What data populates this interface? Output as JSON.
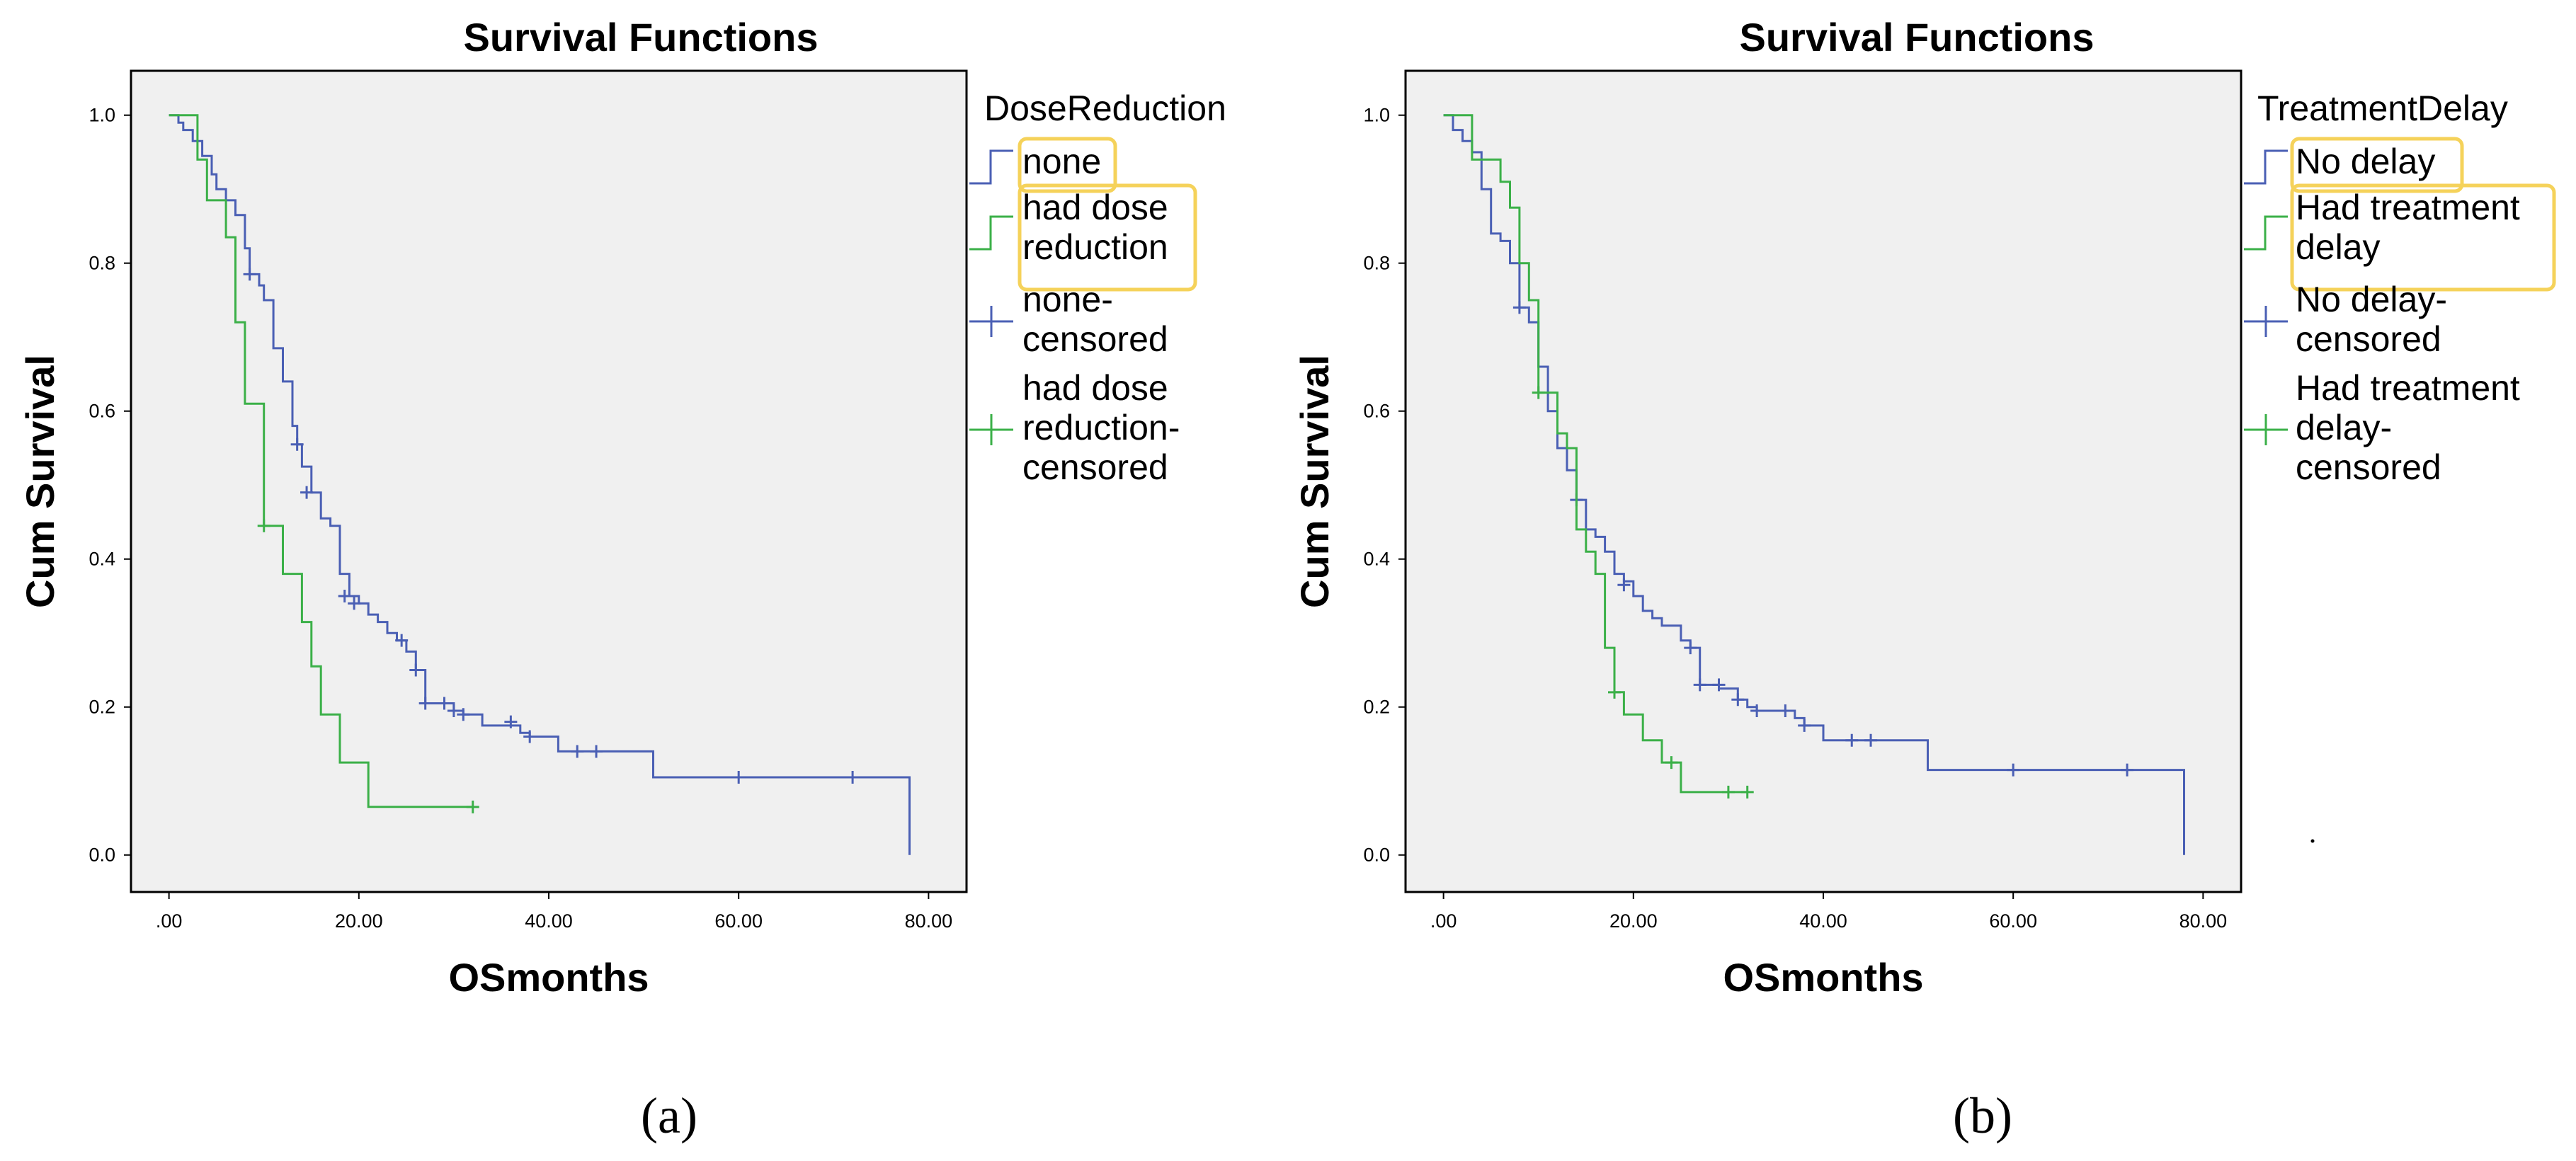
{
  "colors": {
    "none": "#4a5fb4",
    "reduced": "#3bb048",
    "highlight": "#f5d25a"
  },
  "chart_data": [
    {
      "type": "line",
      "subtype": "kaplan-meier step",
      "panel_label": "(a)",
      "title": "Survival Functions",
      "xlabel": "OSmonths",
      "ylabel": "Cum Survival",
      "xlim": [
        -4,
        84
      ],
      "ylim": [
        -0.05,
        1.06
      ],
      "xticks": [
        0,
        20,
        40,
        60,
        80
      ],
      "xtick_labels": [
        ".00",
        "20.00",
        "40.00",
        "60.00",
        "80.00"
      ],
      "yticks": [
        0.0,
        0.2,
        0.4,
        0.6,
        0.8,
        1.0
      ],
      "ytick_labels": [
        "0.0",
        "0.2",
        "0.4",
        "0.6",
        "0.8",
        "1.0"
      ],
      "legend_title": "DoseReduction",
      "legend": [
        {
          "label": "none",
          "lines": [
            "none"
          ],
          "series": 0,
          "kind": "line"
        },
        {
          "label": "had dose reduction",
          "lines": [
            "had dose",
            "reduction"
          ],
          "series": 1,
          "kind": "line"
        },
        {
          "label": "none-censored",
          "lines": [
            "none-",
            "censored"
          ],
          "series": 0,
          "kind": "censor"
        },
        {
          "label": "had dose reduction-censored",
          "lines": [
            "had dose",
            "reduction-",
            "censored"
          ],
          "series": 1,
          "kind": "censor"
        }
      ],
      "series": [
        {
          "name": "none",
          "color_key": "none",
          "steps": [
            [
              0,
              1.0
            ],
            [
              1,
              0.99
            ],
            [
              1.5,
              0.98
            ],
            [
              2.5,
              0.965
            ],
            [
              3.5,
              0.945
            ],
            [
              4.5,
              0.92
            ],
            [
              5,
              0.9
            ],
            [
              6,
              0.885
            ],
            [
              7,
              0.865
            ],
            [
              8,
              0.82
            ],
            [
              8.5,
              0.785
            ],
            [
              9.5,
              0.77
            ],
            [
              10,
              0.75
            ],
            [
              11,
              0.685
            ],
            [
              12,
              0.64
            ],
            [
              13,
              0.58
            ],
            [
              13.5,
              0.555
            ],
            [
              14,
              0.525
            ],
            [
              15,
              0.49
            ],
            [
              16,
              0.455
            ],
            [
              17,
              0.445
            ],
            [
              18,
              0.38
            ],
            [
              19,
              0.35
            ],
            [
              20,
              0.34
            ],
            [
              21,
              0.325
            ],
            [
              22,
              0.315
            ],
            [
              23,
              0.3
            ],
            [
              24,
              0.29
            ],
            [
              25,
              0.275
            ],
            [
              26,
              0.25
            ],
            [
              27,
              0.205
            ],
            [
              30,
              0.195
            ],
            [
              31,
              0.19
            ],
            [
              33,
              0.175
            ],
            [
              37,
              0.165
            ],
            [
              38,
              0.16
            ],
            [
              41,
              0.14
            ],
            [
              51,
              0.105
            ],
            [
              78,
              0.0
            ]
          ],
          "censored": [
            [
              8.5,
              0.785
            ],
            [
              13.5,
              0.555
            ],
            [
              14.5,
              0.49
            ],
            [
              18.5,
              0.35
            ],
            [
              19.5,
              0.34
            ],
            [
              24.5,
              0.29
            ],
            [
              26,
              0.25
            ],
            [
              27,
              0.205
            ],
            [
              29,
              0.205
            ],
            [
              30,
              0.195
            ],
            [
              31,
              0.19
            ],
            [
              36,
              0.18
            ],
            [
              38,
              0.16
            ],
            [
              43,
              0.14
            ],
            [
              45,
              0.14
            ],
            [
              60,
              0.105
            ],
            [
              72,
              0.105
            ]
          ]
        },
        {
          "name": "had dose reduction",
          "color_key": "reduced",
          "steps": [
            [
              0,
              1.0
            ],
            [
              3,
              0.94
            ],
            [
              4,
              0.885
            ],
            [
              5,
              0.885
            ],
            [
              6,
              0.835
            ],
            [
              7,
              0.72
            ],
            [
              8,
              0.61
            ],
            [
              10,
              0.445
            ],
            [
              12,
              0.38
            ],
            [
              14,
              0.315
            ],
            [
              15,
              0.255
            ],
            [
              16,
              0.19
            ],
            [
              18,
              0.125
            ],
            [
              21,
              0.065
            ],
            [
              32,
              0.065
            ]
          ],
          "censored": [
            [
              10,
              0.445
            ],
            [
              32,
              0.065
            ]
          ]
        }
      ]
    },
    {
      "type": "line",
      "subtype": "kaplan-meier step",
      "panel_label": "(b)",
      "title": "Survival Functions",
      "xlabel": "OSmonths",
      "ylabel": "Cum Survival",
      "xlim": [
        -4,
        84
      ],
      "ylim": [
        -0.05,
        1.06
      ],
      "xticks": [
        0,
        20,
        40,
        60,
        80
      ],
      "xtick_labels": [
        ".00",
        "20.00",
        "40.00",
        "60.00",
        "80.00"
      ],
      "yticks": [
        0.0,
        0.2,
        0.4,
        0.6,
        0.8,
        1.0
      ],
      "ytick_labels": [
        "0.0",
        "0.2",
        "0.4",
        "0.6",
        "0.8",
        "1.0"
      ],
      "legend_title": "TreatmentDelay",
      "legend": [
        {
          "label": "No delay",
          "lines": [
            "No delay"
          ],
          "series": 0,
          "kind": "line"
        },
        {
          "label": "Had treatment delay",
          "lines": [
            "Had treatment",
            "delay"
          ],
          "series": 1,
          "kind": "line"
        },
        {
          "label": "No delay-censored",
          "lines": [
            "No delay-",
            "censored"
          ],
          "series": 0,
          "kind": "censor"
        },
        {
          "label": "Had treatment delay-censored",
          "lines": [
            "Had treatment",
            "delay-",
            "censored"
          ],
          "series": 1,
          "kind": "censor"
        }
      ],
      "series": [
        {
          "name": "No delay",
          "color_key": "none",
          "steps": [
            [
              0,
              1.0
            ],
            [
              1,
              0.98
            ],
            [
              2,
              0.965
            ],
            [
              3,
              0.95
            ],
            [
              4,
              0.9
            ],
            [
              5,
              0.84
            ],
            [
              6,
              0.83
            ],
            [
              7,
              0.8
            ],
            [
              8,
              0.74
            ],
            [
              9,
              0.72
            ],
            [
              10,
              0.66
            ],
            [
              11,
              0.6
            ],
            [
              12,
              0.55
            ],
            [
              13,
              0.52
            ],
            [
              14,
              0.48
            ],
            [
              15,
              0.44
            ],
            [
              16,
              0.43
            ],
            [
              17,
              0.41
            ],
            [
              18,
              0.38
            ],
            [
              19,
              0.37
            ],
            [
              20,
              0.35
            ],
            [
              21,
              0.33
            ],
            [
              22,
              0.32
            ],
            [
              23,
              0.31
            ],
            [
              25,
              0.29
            ],
            [
              26,
              0.28
            ],
            [
              27,
              0.23
            ],
            [
              29,
              0.225
            ],
            [
              31,
              0.21
            ],
            [
              32,
              0.2
            ],
            [
              33,
              0.195
            ],
            [
              37,
              0.185
            ],
            [
              38,
              0.175
            ],
            [
              40,
              0.155
            ],
            [
              51,
              0.115
            ],
            [
              78,
              0.0
            ]
          ],
          "censored": [
            [
              8,
              0.74
            ],
            [
              14,
              0.48
            ],
            [
              19,
              0.365
            ],
            [
              26,
              0.28
            ],
            [
              27,
              0.23
            ],
            [
              29,
              0.23
            ],
            [
              31,
              0.21
            ],
            [
              33,
              0.195
            ],
            [
              36,
              0.195
            ],
            [
              38,
              0.175
            ],
            [
              43,
              0.155
            ],
            [
              45,
              0.155
            ],
            [
              60,
              0.115
            ],
            [
              72,
              0.115
            ]
          ]
        },
        {
          "name": "Had treatment delay",
          "color_key": "reduced",
          "steps": [
            [
              0,
              1.0
            ],
            [
              3,
              0.94
            ],
            [
              6,
              0.91
            ],
            [
              7,
              0.875
            ],
            [
              8,
              0.8
            ],
            [
              9,
              0.75
            ],
            [
              10,
              0.625
            ],
            [
              11,
              0.625
            ],
            [
              12,
              0.57
            ],
            [
              13,
              0.55
            ],
            [
              14,
              0.44
            ],
            [
              15,
              0.41
            ],
            [
              16,
              0.38
            ],
            [
              17,
              0.28
            ],
            [
              18,
              0.22
            ],
            [
              19,
              0.19
            ],
            [
              21,
              0.155
            ],
            [
              23,
              0.125
            ],
            [
              25,
              0.085
            ],
            [
              32,
              0.085
            ]
          ],
          "censored": [
            [
              10,
              0.625
            ],
            [
              18,
              0.22
            ],
            [
              24,
              0.125
            ],
            [
              30,
              0.085
            ],
            [
              32,
              0.085
            ]
          ]
        }
      ]
    }
  ]
}
